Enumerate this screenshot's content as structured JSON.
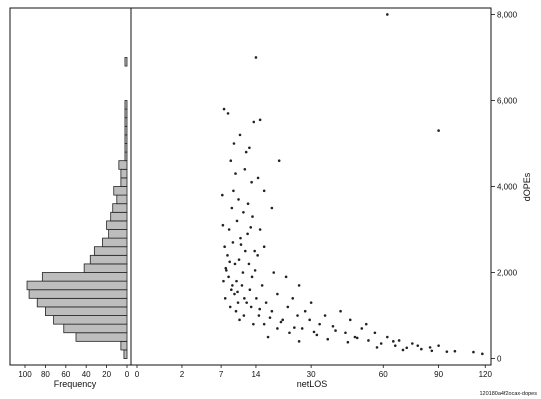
{
  "chart_data": [
    {
      "type": "bar",
      "orientation": "horizontal",
      "xlabel": "Frequency",
      "x_ticks": [
        100,
        80,
        60,
        40,
        20,
        0
      ],
      "xlim": [
        0,
        110
      ],
      "bin_width": 200,
      "bins": [
        {
          "y0": 0,
          "count": 3
        },
        {
          "y0": 200,
          "count": 6
        },
        {
          "y0": 400,
          "count": 50
        },
        {
          "y0": 600,
          "count": 62
        },
        {
          "y0": 800,
          "count": 72
        },
        {
          "y0": 1000,
          "count": 80
        },
        {
          "y0": 1200,
          "count": 88
        },
        {
          "y0": 1400,
          "count": 96
        },
        {
          "y0": 1600,
          "count": 98
        },
        {
          "y0": 1800,
          "count": 83
        },
        {
          "y0": 2000,
          "count": 42
        },
        {
          "y0": 2200,
          "count": 36
        },
        {
          "y0": 2400,
          "count": 32
        },
        {
          "y0": 2600,
          "count": 24
        },
        {
          "y0": 2800,
          "count": 18
        },
        {
          "y0": 3000,
          "count": 20
        },
        {
          "y0": 3200,
          "count": 16
        },
        {
          "y0": 3400,
          "count": 14
        },
        {
          "y0": 3600,
          "count": 10
        },
        {
          "y0": 3800,
          "count": 13
        },
        {
          "y0": 4000,
          "count": 6
        },
        {
          "y0": 4200,
          "count": 6
        },
        {
          "y0": 4400,
          "count": 8
        },
        {
          "y0": 4600,
          "count": 2
        },
        {
          "y0": 4800,
          "count": 2
        },
        {
          "y0": 5000,
          "count": 2
        },
        {
          "y0": 5200,
          "count": 2
        },
        {
          "y0": 5400,
          "count": 2
        },
        {
          "y0": 5600,
          "count": 2
        },
        {
          "y0": 5800,
          "count": 2
        },
        {
          "y0": 6800,
          "count": 2
        }
      ]
    },
    {
      "type": "scatter",
      "xlabel": "netLOS",
      "ylabel": "dOPEs",
      "x_ticks": [
        "0",
        "2",
        "7",
        "14",
        "30",
        "60",
        "90",
        "120"
      ],
      "x_tick_values": [
        0,
        2,
        7,
        14,
        30,
        60,
        90,
        120
      ],
      "x_scale": "sqrt",
      "xlim": [
        0,
        124
      ],
      "y_ticks": [
        "0",
        "2,000",
        "4,000",
        "6,000",
        "8,000"
      ],
      "y_tick_values": [
        0,
        2000,
        4000,
        6000,
        8000
      ],
      "ylim": [
        -150,
        8150
      ],
      "marker_color": "#222222",
      "points": [
        [
          14,
          7000
        ],
        [
          7.5,
          5800
        ],
        [
          8.2,
          5700
        ],
        [
          13.5,
          5500
        ],
        [
          15,
          5550
        ],
        [
          10.5,
          5200
        ],
        [
          9.3,
          5000
        ],
        [
          12.5,
          4900
        ],
        [
          20,
          4600
        ],
        [
          8.7,
          4600
        ],
        [
          11.5,
          4400
        ],
        [
          14.5,
          4200
        ],
        [
          13,
          4100
        ],
        [
          9.6,
          4300
        ],
        [
          16,
          3900
        ],
        [
          7.2,
          3800
        ],
        [
          10.2,
          3700
        ],
        [
          12.2,
          3600
        ],
        [
          18,
          3500
        ],
        [
          8.9,
          3500
        ],
        [
          11.2,
          3400
        ],
        [
          13.2,
          3300
        ],
        [
          9.9,
          3200
        ],
        [
          7.3,
          3100
        ],
        [
          8.4,
          3000
        ],
        [
          15,
          3000
        ],
        [
          12.1,
          2900
        ],
        [
          10.6,
          2800
        ],
        [
          9.1,
          2700
        ],
        [
          7.6,
          2600
        ],
        [
          16,
          2600
        ],
        [
          11.6,
          2500
        ],
        [
          13.7,
          2500
        ],
        [
          8.1,
          2400
        ],
        [
          14.4,
          2400
        ],
        [
          10.3,
          2300
        ],
        [
          9.5,
          2200
        ],
        [
          7.8,
          2100
        ],
        [
          12.4,
          2200
        ],
        [
          18.5,
          2000
        ],
        [
          11.1,
          2000
        ],
        [
          8.3,
          1900
        ],
        [
          9.8,
          1800
        ],
        [
          13.1,
          1900
        ],
        [
          7.4,
          1800
        ],
        [
          10.9,
          1700
        ],
        [
          15.5,
          1700
        ],
        [
          8.8,
          1600
        ],
        [
          12.6,
          1600
        ],
        [
          19.5,
          1500
        ],
        [
          9.4,
          1500
        ],
        [
          11.4,
          1400
        ],
        [
          7.7,
          1400
        ],
        [
          14.1,
          1400
        ],
        [
          10.1,
          1300
        ],
        [
          16.5,
          1300
        ],
        [
          8.6,
          1200
        ],
        [
          22.5,
          1200
        ],
        [
          12.9,
          1200
        ],
        [
          9.7,
          1100
        ],
        [
          18,
          1100
        ],
        [
          25.5,
          1000
        ],
        [
          11.3,
          1000
        ],
        [
          14.7,
          1000
        ],
        [
          29.5,
          900
        ],
        [
          10.4,
          900
        ],
        [
          21,
          900
        ],
        [
          33,
          800
        ],
        [
          16,
          800
        ],
        [
          13.4,
          800
        ],
        [
          27,
          700
        ],
        [
          39,
          650
        ],
        [
          19.5,
          700
        ],
        [
          43,
          600
        ],
        [
          23,
          600
        ],
        [
          32,
          550
        ],
        [
          47,
          500
        ],
        [
          17,
          500
        ],
        [
          36,
          450
        ],
        [
          53,
          420
        ],
        [
          26,
          400
        ],
        [
          44,
          380
        ],
        [
          59,
          350
        ],
        [
          66,
          300
        ],
        [
          57,
          260
        ],
        [
          72,
          250
        ],
        [
          80,
          220
        ],
        [
          70,
          200
        ],
        [
          86,
          180
        ],
        [
          95,
          160
        ],
        [
          112,
          150
        ],
        [
          118,
          110
        ],
        [
          90,
          300
        ],
        [
          65,
          400
        ],
        [
          50,
          700
        ],
        [
          41,
          1100
        ],
        [
          30,
          1300
        ],
        [
          26,
          1700
        ],
        [
          45,
          900
        ],
        [
          56,
          600
        ],
        [
          35,
          1000
        ],
        [
          62,
          500
        ],
        [
          75,
          350
        ],
        [
          85,
          260
        ],
        [
          100,
          170
        ],
        [
          90,
          5300
        ],
        [
          62,
          8000
        ],
        [
          22,
          1900
        ],
        [
          38,
          750
        ],
        [
          48,
          480
        ],
        [
          28,
          1100
        ],
        [
          24,
          1400
        ],
        [
          52,
          800
        ],
        [
          68,
          420
        ],
        [
          78,
          300
        ],
        [
          11.8,
          4800
        ],
        [
          9.2,
          3900
        ],
        [
          12.8,
          3050
        ],
        [
          10.7,
          2650
        ],
        [
          8.5,
          2250
        ],
        [
          7.9,
          2050
        ],
        [
          13.8,
          2050
        ],
        [
          9,
          1700
        ],
        [
          10,
          1550
        ],
        [
          11.9,
          1300
        ],
        [
          14.9,
          1150
        ],
        [
          17.5,
          950
        ],
        [
          20.5,
          850
        ],
        [
          24.5,
          720
        ],
        [
          31,
          620
        ]
      ]
    }
  ],
  "footnote": "120180a4f2ocax-dopes"
}
